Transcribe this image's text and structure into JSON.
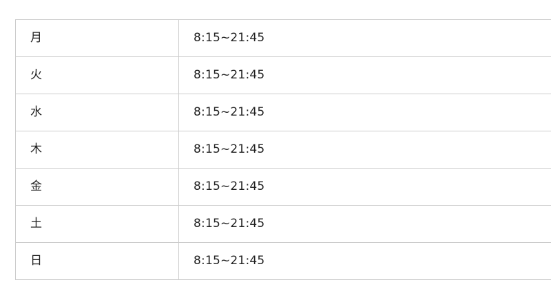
{
  "table_name": "business-hours",
  "rows": [
    {
      "day": "月",
      "hours": "8:15~21:45"
    },
    {
      "day": "火",
      "hours": "8:15~21:45"
    },
    {
      "day": "水",
      "hours": "8:15~21:45"
    },
    {
      "day": "木",
      "hours": "8:15~21:45"
    },
    {
      "day": "金",
      "hours": "8:15~21:45"
    },
    {
      "day": "土",
      "hours": "8:15~21:45"
    },
    {
      "day": "日",
      "hours": "8:15~21:45"
    }
  ],
  "colors": {
    "background": "#ffffff",
    "border": "#cccccc",
    "text": "#212121"
  }
}
